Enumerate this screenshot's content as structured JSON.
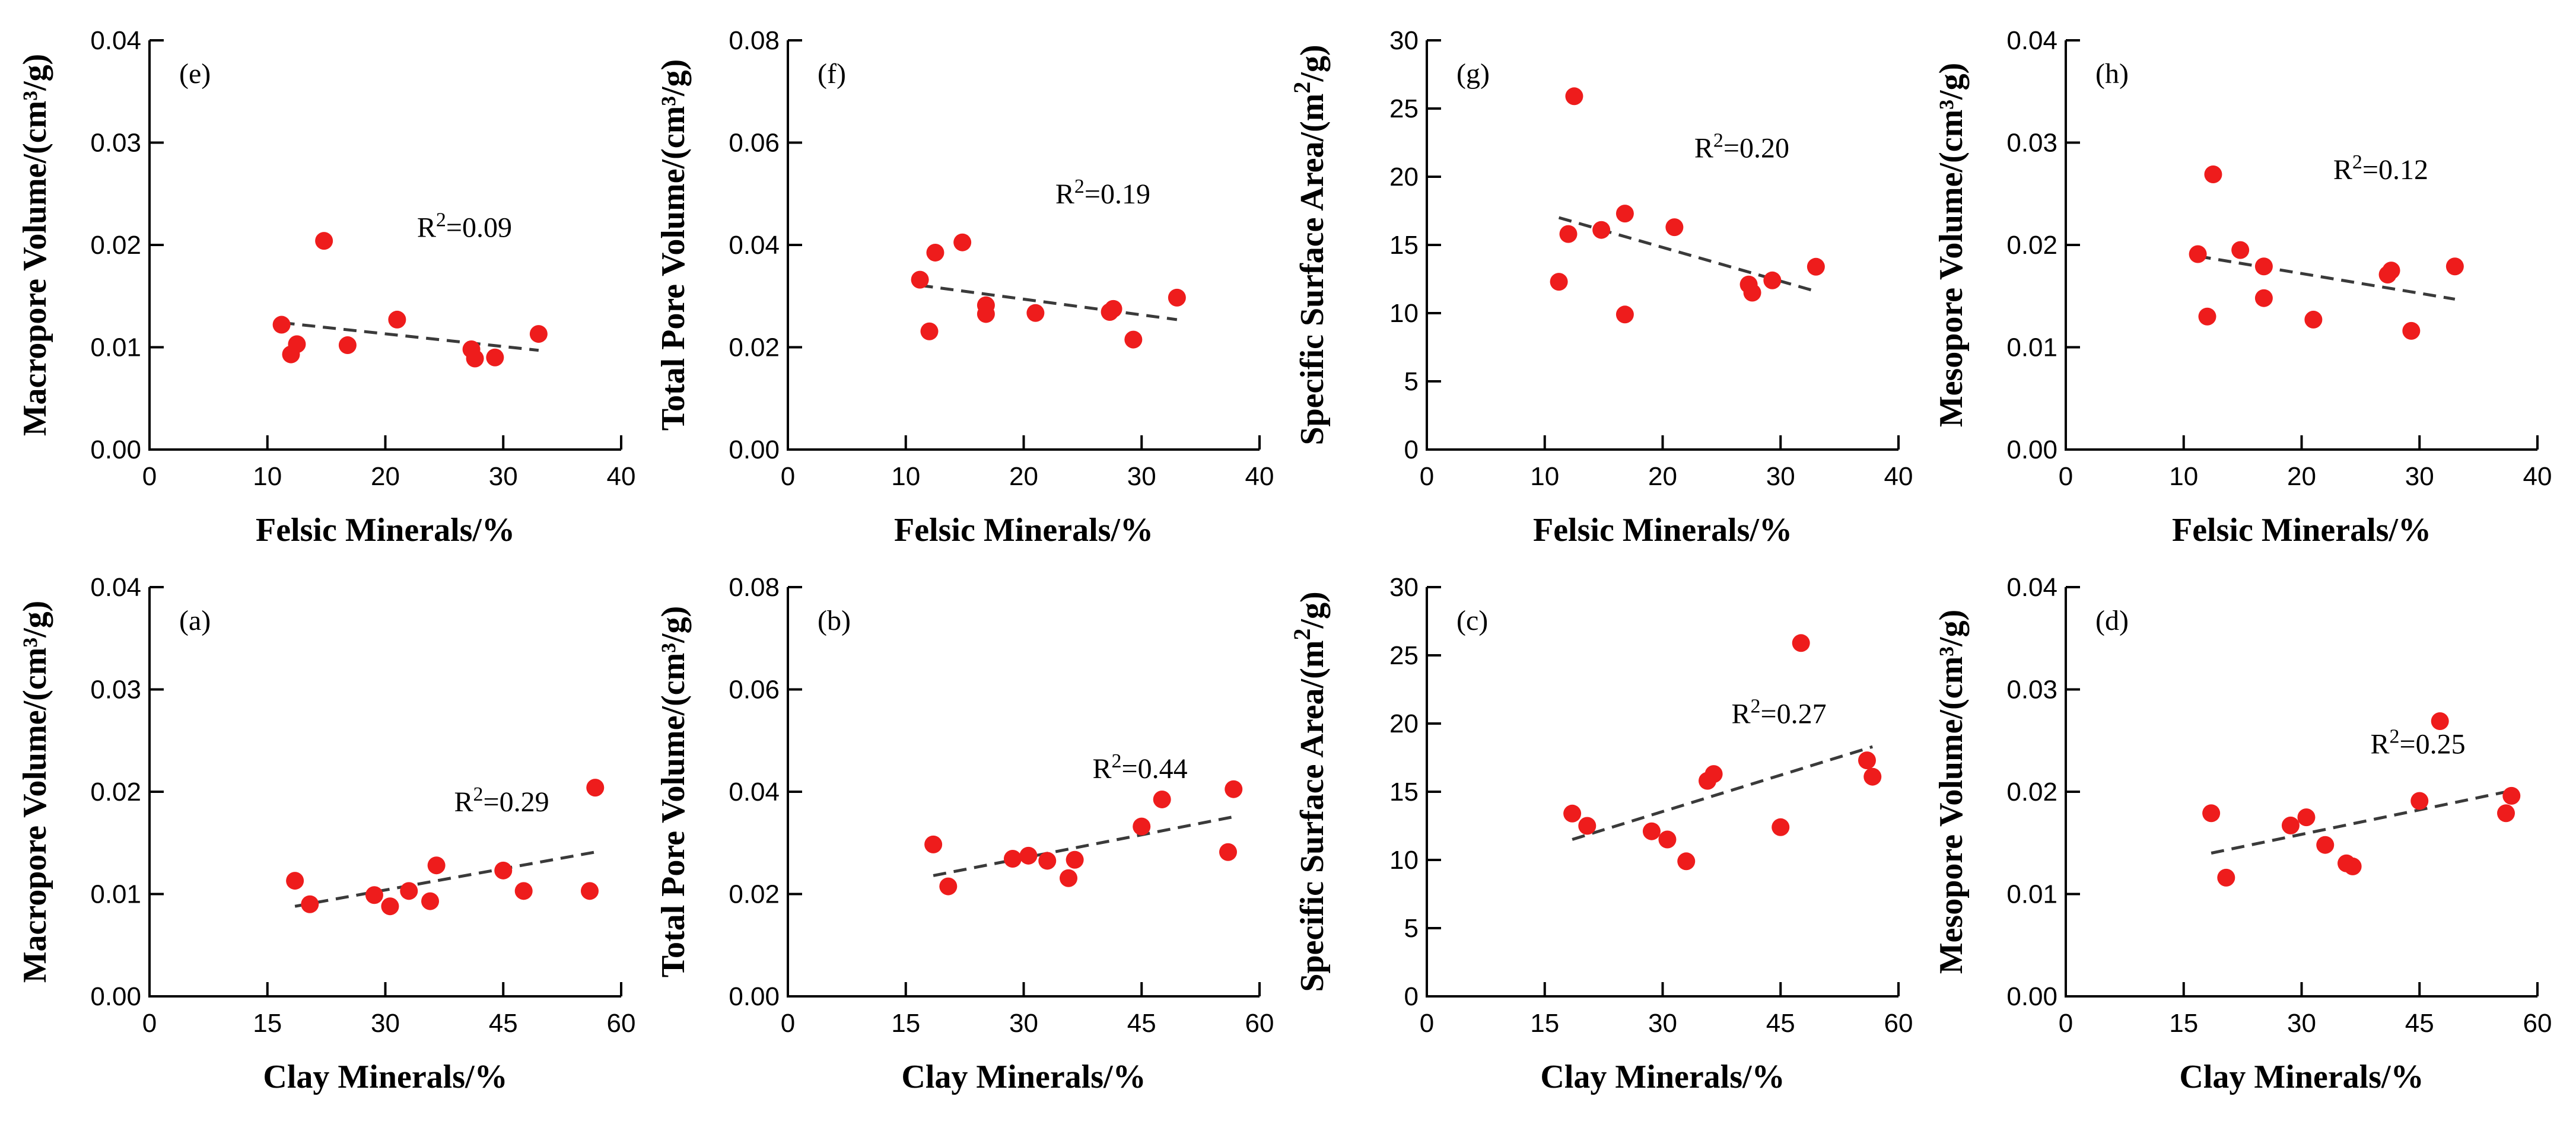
{
  "colors": {
    "points": "#ee1c1c",
    "fit_line": "#3a3a3a",
    "axes": "#000000"
  },
  "chart_data": [
    {
      "id": "e",
      "row": 0,
      "col": 0,
      "type": "scatter",
      "panel_label": "(e)",
      "r2": "0.09",
      "xlabel": "Felsic Minerals/%",
      "ylabel": "Macropore Volume/(cm³/g)",
      "ylabel_sup": "",
      "xlim": [
        0,
        40
      ],
      "xticks": [
        0,
        10,
        20,
        30,
        40
      ],
      "ylim": [
        0,
        0.04
      ],
      "yticks": [
        0.0,
        0.01,
        0.02,
        0.03,
        0.04
      ],
      "ydecimals": 2,
      "points": [
        [
          11.2,
          0.0122
        ],
        [
          12.0,
          0.0093
        ],
        [
          12.5,
          0.0103
        ],
        [
          14.8,
          0.0204
        ],
        [
          16.8,
          0.0102
        ],
        [
          21.0,
          0.0127
        ],
        [
          27.3,
          0.0098
        ],
        [
          27.6,
          0.0089
        ],
        [
          29.3,
          0.009
        ],
        [
          33.0,
          0.0113
        ]
      ],
      "fit": [
        [
          11.2,
          0.0124
        ],
        [
          33.0,
          0.0097
        ]
      ]
    },
    {
      "id": "f",
      "row": 0,
      "col": 1,
      "type": "scatter",
      "panel_label": "(f)",
      "r2": "0.19",
      "xlabel": "Felsic Minerals/%",
      "ylabel": "Total Pore Volume/(cm³/g)",
      "ylabel_sup": "",
      "xlim": [
        0,
        40
      ],
      "xticks": [
        0,
        10,
        20,
        30,
        40
      ],
      "ylim": [
        0,
        0.08
      ],
      "yticks": [
        0.0,
        0.02,
        0.04,
        0.06,
        0.08
      ],
      "ydecimals": 2,
      "points": [
        [
          11.2,
          0.0332
        ],
        [
          12.0,
          0.0231
        ],
        [
          12.5,
          0.0385
        ],
        [
          14.8,
          0.0405
        ],
        [
          16.8,
          0.0282
        ],
        [
          16.8,
          0.0265
        ],
        [
          21.0,
          0.0267
        ],
        [
          27.3,
          0.0269
        ],
        [
          27.6,
          0.0275
        ],
        [
          29.3,
          0.0215
        ],
        [
          33.0,
          0.0297
        ]
      ],
      "fit": [
        [
          11.2,
          0.0321
        ],
        [
          33.0,
          0.0254
        ]
      ]
    },
    {
      "id": "g",
      "row": 0,
      "col": 2,
      "type": "scatter",
      "panel_label": "(g)",
      "r2": "0.20",
      "xlabel": "Felsic Minerals/%",
      "ylabel": "Specific Surface Area/(m",
      "ylabel_sup": "2",
      "ylabel_tail": "/g)",
      "xlim": [
        0,
        40
      ],
      "xticks": [
        0,
        10,
        20,
        30,
        40
      ],
      "ylim": [
        0,
        30
      ],
      "yticks": [
        0,
        5,
        10,
        15,
        20,
        25,
        30
      ],
      "ydecimals": 0,
      "points": [
        [
          11.2,
          12.3
        ],
        [
          12.0,
          15.8
        ],
        [
          12.5,
          25.9
        ],
        [
          14.8,
          16.1
        ],
        [
          16.8,
          17.3
        ],
        [
          16.8,
          9.9
        ],
        [
          21.0,
          16.3
        ],
        [
          27.3,
          12.1
        ],
        [
          27.6,
          11.5
        ],
        [
          29.3,
          12.4
        ],
        [
          33.0,
          13.4
        ]
      ],
      "fit": [
        [
          11.2,
          17.0
        ],
        [
          33.0,
          11.6
        ]
      ]
    },
    {
      "id": "h",
      "row": 0,
      "col": 3,
      "type": "scatter",
      "panel_label": "(h)",
      "r2": "0.12",
      "xlabel": "Felsic Minerals/%",
      "ylabel": "Mesopore Volume/(cm³/g)",
      "ylabel_sup": "",
      "xlim": [
        0,
        40
      ],
      "xticks": [
        0,
        10,
        20,
        30,
        40
      ],
      "ylim": [
        0,
        0.04
      ],
      "yticks": [
        0.0,
        0.01,
        0.02,
        0.03,
        0.04
      ],
      "ydecimals": 2,
      "points": [
        [
          11.2,
          0.0191
        ],
        [
          12.0,
          0.013
        ],
        [
          12.5,
          0.0269
        ],
        [
          14.8,
          0.0195
        ],
        [
          16.8,
          0.0179
        ],
        [
          16.8,
          0.0148
        ],
        [
          21.0,
          0.0127
        ],
        [
          27.3,
          0.0171
        ],
        [
          27.6,
          0.0175
        ],
        [
          29.3,
          0.0116
        ],
        [
          33.0,
          0.0179
        ]
      ],
      "fit": [
        [
          11.2,
          0.0189
        ],
        [
          33.0,
          0.0147
        ]
      ]
    },
    {
      "id": "a",
      "row": 1,
      "col": 0,
      "type": "scatter",
      "panel_label": "(a)",
      "r2": "0.29",
      "xlabel": "Clay Minerals/%",
      "ylabel": "Macropore Volume/(cm³/g)",
      "ylabel_sup": "",
      "xlim": [
        0,
        60
      ],
      "xticks": [
        0,
        15,
        30,
        45,
        60
      ],
      "ylim": [
        0,
        0.04
      ],
      "yticks": [
        0.0,
        0.01,
        0.02,
        0.03,
        0.04
      ],
      "ydecimals": 2,
      "points": [
        [
          18.5,
          0.0113
        ],
        [
          20.4,
          0.009
        ],
        [
          28.6,
          0.0099
        ],
        [
          30.6,
          0.0088
        ],
        [
          33.0,
          0.0103
        ],
        [
          35.7,
          0.0093
        ],
        [
          36.5,
          0.0128
        ],
        [
          45.0,
          0.0123
        ],
        [
          47.6,
          0.0103
        ],
        [
          56.0,
          0.0103
        ],
        [
          56.7,
          0.0204
        ]
      ],
      "fit": [
        [
          18.5,
          0.0088
        ],
        [
          56.7,
          0.0141
        ]
      ]
    },
    {
      "id": "b",
      "row": 1,
      "col": 1,
      "type": "scatter",
      "panel_label": "(b)",
      "r2": "0.44",
      "xlabel": "Clay Minerals/%",
      "ylabel": "Total Pore Volume/(cm³/g)",
      "ylabel_sup": "",
      "xlim": [
        0,
        60
      ],
      "xticks": [
        0,
        15,
        30,
        45,
        60
      ],
      "ylim": [
        0,
        0.08
      ],
      "yticks": [
        0.0,
        0.02,
        0.04,
        0.06,
        0.08
      ],
      "ydecimals": 2,
      "points": [
        [
          18.5,
          0.0297
        ],
        [
          20.4,
          0.0215
        ],
        [
          28.6,
          0.0269
        ],
        [
          30.6,
          0.0275
        ],
        [
          33.0,
          0.0265
        ],
        [
          35.7,
          0.0231
        ],
        [
          36.5,
          0.0267
        ],
        [
          45.0,
          0.0332
        ],
        [
          47.6,
          0.0385
        ],
        [
          56.0,
          0.0282
        ],
        [
          56.7,
          0.0405
        ]
      ],
      "fit": [
        [
          18.5,
          0.0236
        ],
        [
          56.7,
          0.0351
        ]
      ]
    },
    {
      "id": "c",
      "row": 1,
      "col": 2,
      "type": "scatter",
      "panel_label": "(c)",
      "r2": "0.27",
      "xlabel": "Clay Minerals/%",
      "ylabel": "Specific Surface Area/(m",
      "ylabel_sup": "2",
      "ylabel_tail": "/g)",
      "xlim": [
        0,
        60
      ],
      "xticks": [
        0,
        15,
        30,
        45,
        60
      ],
      "ylim": [
        0,
        30
      ],
      "yticks": [
        0,
        5,
        10,
        15,
        20,
        25,
        30
      ],
      "ydecimals": 0,
      "points": [
        [
          18.5,
          13.4
        ],
        [
          20.4,
          12.5
        ],
        [
          28.6,
          12.1
        ],
        [
          30.6,
          11.5
        ],
        [
          33.0,
          9.9
        ],
        [
          35.7,
          15.8
        ],
        [
          36.5,
          16.3
        ],
        [
          45.0,
          12.4
        ],
        [
          47.6,
          25.9
        ],
        [
          56.0,
          17.3
        ],
        [
          56.7,
          16.1
        ]
      ],
      "fit": [
        [
          18.5,
          11.5
        ],
        [
          56.7,
          18.3
        ]
      ]
    },
    {
      "id": "d",
      "row": 1,
      "col": 3,
      "type": "scatter",
      "panel_label": "(d)",
      "r2": "0.25",
      "xlabel": "Clay Minerals/%",
      "ylabel": "Mesopore Volume/(cm³/g)",
      "ylabel_sup": "",
      "xlim": [
        0,
        60
      ],
      "xticks": [
        0,
        15,
        30,
        45,
        60
      ],
      "ylim": [
        0,
        0.04
      ],
      "yticks": [
        0.0,
        0.01,
        0.02,
        0.03,
        0.04
      ],
      "ydecimals": 2,
      "points": [
        [
          18.5,
          0.0179
        ],
        [
          20.4,
          0.0116
        ],
        [
          28.6,
          0.0167
        ],
        [
          30.6,
          0.0175
        ],
        [
          33.0,
          0.0148
        ],
        [
          35.7,
          0.013
        ],
        [
          36.5,
          0.0127
        ],
        [
          45.0,
          0.0191
        ],
        [
          47.6,
          0.0269
        ],
        [
          56.0,
          0.0179
        ],
        [
          56.7,
          0.0196
        ]
      ],
      "fit": [
        [
          18.5,
          0.014
        ],
        [
          56.7,
          0.0201
        ]
      ]
    }
  ]
}
